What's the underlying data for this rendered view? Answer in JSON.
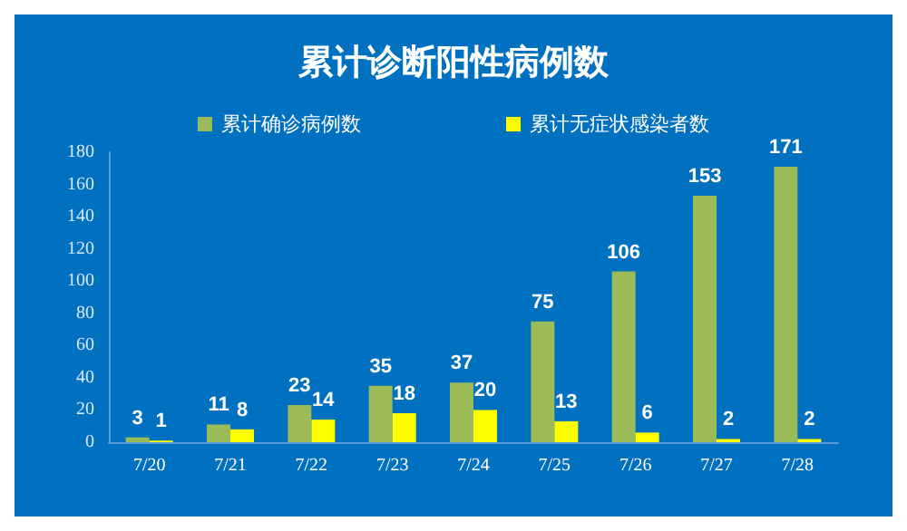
{
  "chart_data": {
    "type": "bar",
    "title": "累计诊断阳性病例数",
    "categories": [
      "7/20",
      "7/21",
      "7/22",
      "7/23",
      "7/24",
      "7/25",
      "7/26",
      "7/27",
      "7/28"
    ],
    "series": [
      {
        "name": "累计确诊病例数",
        "color": "#9bbb59",
        "values": [
          3,
          11,
          23,
          35,
          37,
          75,
          106,
          153,
          171
        ]
      },
      {
        "name": "累计无症状感染者数",
        "color": "#ffff00",
        "values": [
          1,
          8,
          14,
          18,
          20,
          13,
          6,
          2,
          2
        ]
      }
    ],
    "ylim": [
      0,
      180
    ],
    "yticks": [
      0,
      20,
      40,
      60,
      80,
      100,
      120,
      140,
      160,
      180
    ],
    "grid": false,
    "legend": "top",
    "data_labels": true
  }
}
